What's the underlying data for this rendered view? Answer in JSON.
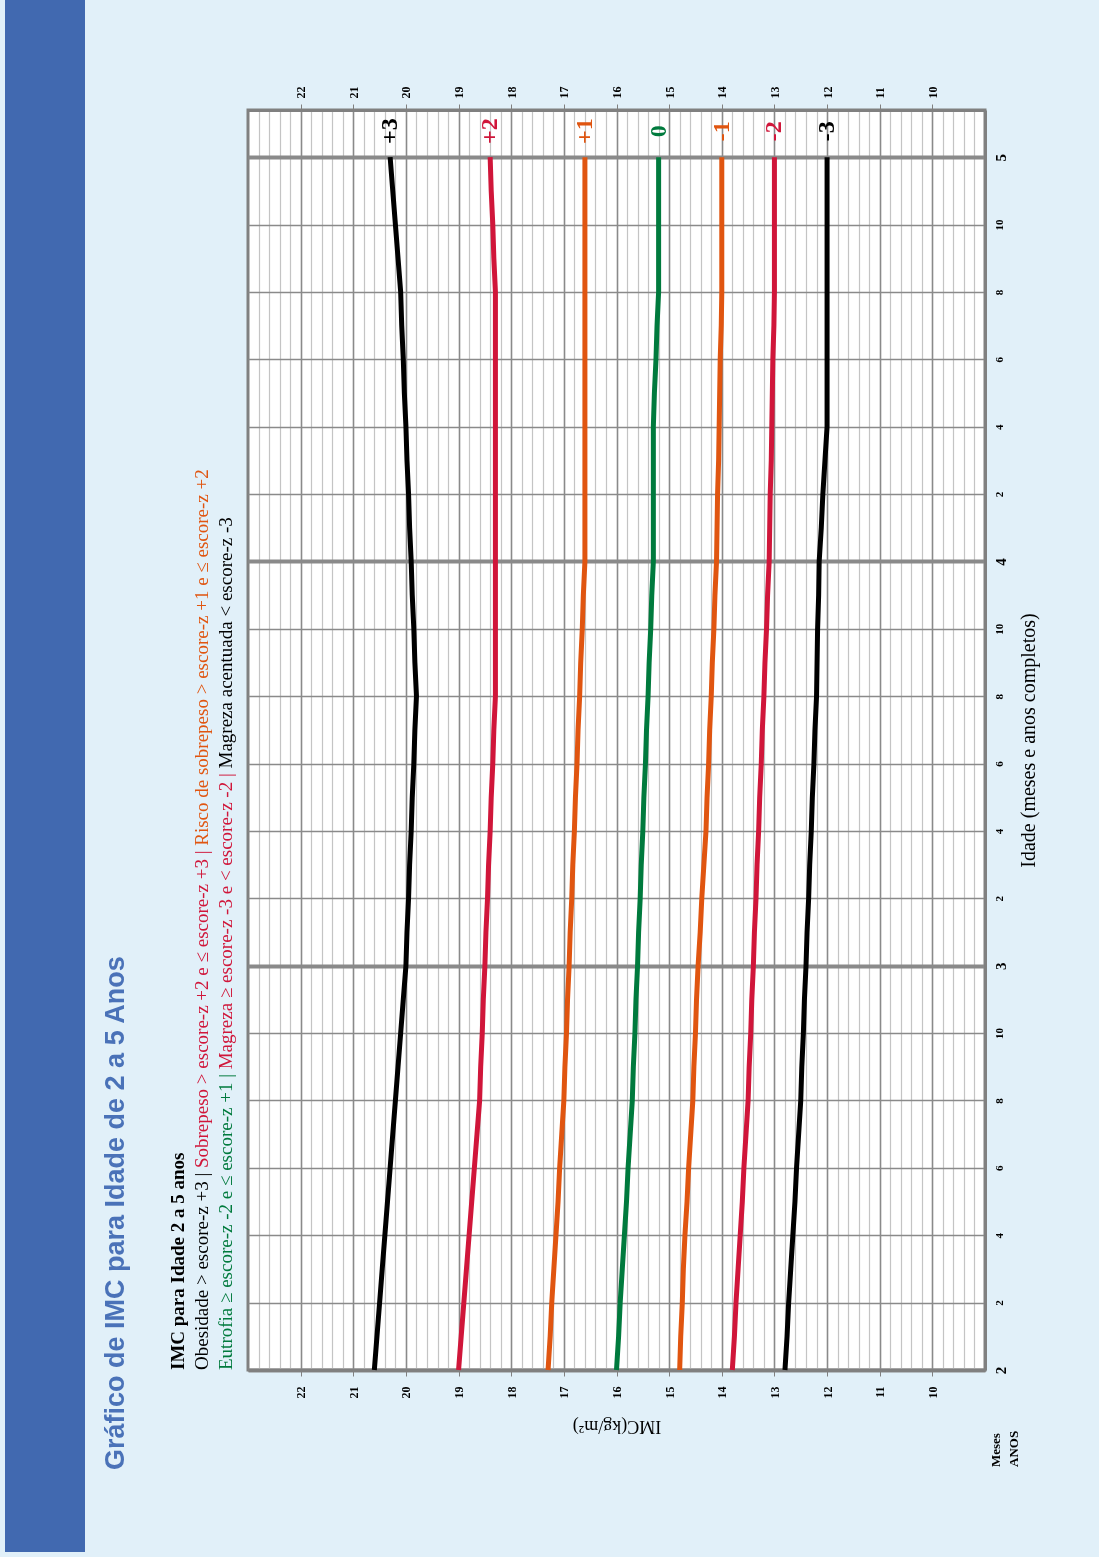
{
  "chart_data": {
    "type": "line",
    "orientation": "horizontal",
    "title": "Gráfico de IMC para Idade de 2 a 5 Anos",
    "subtitle": "IMC para Idade 2 a 5 anos",
    "xlabel": "IMC(kg/m²)",
    "ylabel": "Idade (meses e anos completos)",
    "annotations": [
      "Obesidade > escore-z +3 |",
      "Sobrepeso > escore-z +2 e ≤ escore-z +3 |",
      "Risco de sobrepeso > escore-z +1 e ≤ escore-z +2",
      "Eutrofia ≥ escore-z -2 e ≤ escore-z +1 |",
      "Magreza ≥ escore-z -3 e < escore-z -2 |",
      "Magreza acentuada < escore-z -3",
      "Meses",
      "ANOS"
    ],
    "categories": [
      "5",
      null,
      "10",
      null,
      "8",
      null,
      "6",
      null,
      "4",
      null,
      "2",
      null,
      "4",
      null,
      "10",
      null,
      "8",
      null,
      "6",
      null,
      "4",
      null,
      "2",
      null,
      "3",
      null,
      "10",
      null,
      "8",
      null,
      "6",
      null,
      "4",
      null,
      "2",
      null,
      "2"
    ],
    "series": [
      {
        "name": "+3",
        "color": "#000000",
        "values": [
          20.3,
          20.25,
          20.2,
          20.15,
          20.1,
          20.08,
          20.05,
          20.03,
          20.0,
          19.98,
          19.95,
          19.93,
          19.9,
          19.88,
          19.85,
          19.83,
          19.8,
          19.83,
          19.85,
          19.88,
          19.9,
          19.93,
          19.95,
          19.98,
          20.0,
          20.05,
          20.1,
          20.15,
          20.2,
          20.25,
          20.3,
          20.35,
          20.4,
          20.45,
          20.5,
          20.55,
          20.6
        ]
      },
      {
        "name": "+2",
        "color": "#d0163a",
        "values": [
          18.4,
          18.38,
          18.35,
          18.33,
          18.3,
          18.3,
          18.3,
          18.3,
          18.3,
          18.3,
          18.3,
          18.3,
          18.3,
          18.3,
          18.3,
          18.3,
          18.3,
          18.33,
          18.35,
          18.38,
          18.4,
          18.43,
          18.45,
          18.48,
          18.5,
          18.53,
          18.55,
          18.58,
          18.6,
          18.65,
          18.7,
          18.75,
          18.8,
          18.85,
          18.9,
          18.95,
          19.0
        ]
      },
      {
        "name": "+1",
        "color": "#e05510",
        "values": [
          16.6,
          16.6,
          16.6,
          16.6,
          16.6,
          16.6,
          16.6,
          16.6,
          16.6,
          16.6,
          16.6,
          16.6,
          16.6,
          16.63,
          16.65,
          16.68,
          16.7,
          16.73,
          16.75,
          16.78,
          16.8,
          16.83,
          16.85,
          16.88,
          16.9,
          16.93,
          16.95,
          16.98,
          17.0,
          17.04,
          17.08,
          17.11,
          17.15,
          17.19,
          17.23,
          17.26,
          17.3
        ]
      },
      {
        "name": "0",
        "color": "#007a3d",
        "values": [
          15.2,
          15.2,
          15.2,
          15.2,
          15.2,
          15.23,
          15.25,
          15.28,
          15.3,
          15.3,
          15.3,
          15.3,
          15.3,
          15.33,
          15.35,
          15.38,
          15.4,
          15.43,
          15.45,
          15.48,
          15.5,
          15.53,
          15.55,
          15.58,
          15.6,
          15.63,
          15.65,
          15.68,
          15.7,
          15.74,
          15.78,
          15.81,
          15.85,
          15.89,
          15.93,
          15.96,
          16.0
        ]
      },
      {
        "name": "-1",
        "color": "#e05510",
        "values": [
          14.0,
          14.0,
          14.0,
          14.0,
          14.0,
          14.01,
          14.03,
          14.04,
          14.05,
          14.06,
          14.08,
          14.09,
          14.1,
          14.13,
          14.15,
          14.18,
          14.2,
          14.23,
          14.25,
          14.28,
          14.3,
          14.34,
          14.38,
          14.41,
          14.45,
          14.48,
          14.5,
          14.53,
          14.55,
          14.59,
          14.63,
          14.66,
          14.7,
          14.73,
          14.75,
          14.78,
          14.8
        ]
      },
      {
        "name": "-2",
        "color": "#d0163a",
        "values": [
          13.0,
          13.0,
          13.0,
          13.0,
          13.0,
          13.01,
          13.03,
          13.04,
          13.05,
          13.06,
          13.08,
          13.09,
          13.1,
          13.13,
          13.15,
          13.18,
          13.2,
          13.23,
          13.25,
          13.28,
          13.3,
          13.33,
          13.35,
          13.38,
          13.4,
          13.43,
          13.45,
          13.48,
          13.5,
          13.54,
          13.58,
          13.61,
          13.65,
          13.69,
          13.73,
          13.76,
          13.8
        ]
      },
      {
        "name": "-3",
        "color": "#000000",
        "values": [
          12.0,
          12.0,
          12.0,
          12.0,
          12.0,
          12.0,
          12.0,
          12.0,
          12.0,
          12.04,
          12.08,
          12.11,
          12.15,
          12.16,
          12.18,
          12.19,
          12.2,
          12.23,
          12.25,
          12.28,
          12.3,
          12.33,
          12.35,
          12.38,
          12.4,
          12.43,
          12.45,
          12.48,
          12.5,
          12.54,
          12.58,
          12.61,
          12.65,
          12.69,
          12.73,
          12.76,
          12.8
        ]
      }
    ],
    "xlim": [
      23,
      9
    ],
    "xticks": [
      {
        "value": 22.8,
        "label": null
      },
      {
        "value": 22.6,
        "label": null
      },
      {
        "value": 22.4,
        "label": null
      },
      {
        "value": 22.2,
        "label": null
      },
      22,
      {
        "value": 21.8,
        "label": null
      },
      {
        "value": 21.6,
        "label": null
      },
      {
        "value": 21.4,
        "label": null
      },
      {
        "value": 21.2,
        "label": null
      },
      21,
      {
        "value": 20.8,
        "label": null
      },
      {
        "value": 20.6,
        "label": null
      },
      {
        "value": 20.4,
        "label": null
      },
      {
        "value": 20.2,
        "label": null
      },
      20,
      {
        "value": 19.8,
        "label": null
      },
      {
        "value": 19.6,
        "label": null
      },
      {
        "value": 19.4,
        "label": null
      },
      {
        "value": 19.2,
        "label": null
      },
      19,
      {
        "value": 18.8,
        "label": null
      },
      {
        "value": 18.6,
        "label": null
      },
      {
        "value": 18.4,
        "label": null
      },
      {
        "value": 18.2,
        "label": null
      },
      18,
      {
        "value": 17.8,
        "label": null
      },
      {
        "value": 17.6,
        "label": null
      },
      {
        "value": 17.4,
        "label": null
      },
      {
        "value": 17.2,
        "label": null
      },
      17,
      {
        "value": 16.8,
        "label": null
      },
      {
        "value": 16.6,
        "label": null
      },
      {
        "value": 16.4,
        "label": null
      },
      {
        "value": 16.2,
        "label": null
      },
      16,
      {
        "value": 15.8,
        "label": null
      },
      {
        "value": 15.6,
        "label": null
      },
      {
        "value": 15.4,
        "label": null
      },
      {
        "value": 15.2,
        "label": null
      },
      15,
      {
        "value": 14.8,
        "label": null
      },
      {
        "value": 14.6,
        "label": null
      },
      {
        "value": 14.4,
        "label": null
      },
      {
        "value": 14.2,
        "label": null
      },
      14,
      {
        "value": 13.8,
        "label": null
      },
      {
        "value": 13.6,
        "label": null
      },
      {
        "value": 13.4,
        "label": null
      },
      {
        "value": 13.2,
        "label": null
      },
      13,
      {
        "value": 12.8,
        "label": null
      },
      {
        "value": 12.6,
        "label": null
      },
      {
        "value": 12.4,
        "label": null
      },
      {
        "value": 12.2,
        "label": null
      },
      12,
      {
        "value": 11.8,
        "label": null
      },
      {
        "value": 11.6,
        "label": null
      },
      {
        "value": 11.4,
        "label": null
      },
      {
        "value": 11.2,
        "label": null
      },
      11,
      {
        "value": 10.8,
        "label": null
      },
      {
        "value": 10.6,
        "label": null
      },
      {
        "value": 10.4,
        "label": null
      },
      {
        "value": 10.2,
        "label": null
      },
      10,
      {
        "value": 9.8,
        "label": null
      },
      {
        "value": 9.6,
        "label": null
      },
      {
        "value": 9.4,
        "label": null
      },
      {
        "value": 9.2,
        "label": null
      }
    ],
    "x2lim": [
      23,
      9
    ],
    "x2ticks": [
      22,
      21,
      20,
      19,
      18,
      17,
      16,
      15,
      14,
      13,
      12,
      11,
      10
    ],
    "grid": true,
    "marker": "none",
    "line_style": "solid"
  }
}
